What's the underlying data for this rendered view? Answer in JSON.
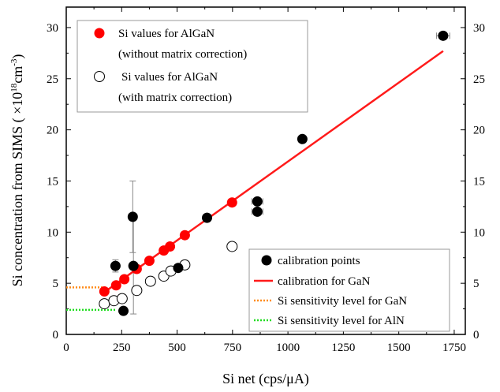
{
  "chart_data": {
    "type": "scatter",
    "xlabel": "Si net (cps/μA)",
    "ylabel_main": "Si concentration from SIMS ( ×10",
    "ylabel_exp": "18",
    "ylabel_unit": "cm",
    "ylabel_unit_exp": "-3",
    "ylabel_close": ")",
    "xlim": [
      0,
      1800
    ],
    "ylim": [
      0,
      32
    ],
    "xticks": [
      0,
      250,
      500,
      750,
      1000,
      1250,
      1500,
      1750
    ],
    "yticks": [
      0,
      5,
      10,
      15,
      20,
      25,
      30
    ],
    "legend_top": {
      "position": "top-left",
      "entries": [
        {
          "line1": "Si values for AlGaN",
          "line2": "(without matrix correction)"
        },
        {
          "line1": "Si values for AlGaN",
          "line2": "(with matrix correction)"
        }
      ]
    },
    "legend_bottom": {
      "position": "bottom-right",
      "entries": [
        "calibration points",
        "calibration for GaN",
        "Si sensitivity level for GaN",
        "Si sensitivity level for AlN"
      ]
    },
    "series": [
      {
        "name": "calibration points",
        "style": "filled-black",
        "points": [
          {
            "x": 222,
            "y": 6.7,
            "yerr": 0.6
          },
          {
            "x": 258,
            "y": 2.3
          },
          {
            "x": 300,
            "y": 11.5,
            "yerr": 3.5
          },
          {
            "x": 303,
            "y": 6.7,
            "yerr": 4.7
          },
          {
            "x": 505,
            "y": 6.5
          },
          {
            "x": 635,
            "y": 11.4
          },
          {
            "x": 862,
            "y": 13.0,
            "xerr": 25
          },
          {
            "x": 862,
            "y": 12.0,
            "xerr": 25
          },
          {
            "x": 1065,
            "y": 19.1
          },
          {
            "x": 1700,
            "y": 29.2,
            "xerr": 30
          }
        ]
      },
      {
        "name": "Si values for AlGaN (without matrix correction)",
        "style": "filled-red",
        "points": [
          {
            "x": 172,
            "y": 4.2
          },
          {
            "x": 225,
            "y": 4.8
          },
          {
            "x": 262,
            "y": 5.4
          },
          {
            "x": 318,
            "y": 6.4
          },
          {
            "x": 375,
            "y": 7.2
          },
          {
            "x": 440,
            "y": 8.2
          },
          {
            "x": 468,
            "y": 8.6
          },
          {
            "x": 535,
            "y": 9.7
          },
          {
            "x": 748,
            "y": 12.9
          }
        ]
      },
      {
        "name": "Si values for AlGaN (with matrix correction)",
        "style": "open",
        "points": [
          {
            "x": 172,
            "y": 3.0
          },
          {
            "x": 215,
            "y": 3.3
          },
          {
            "x": 252,
            "y": 3.5
          },
          {
            "x": 318,
            "y": 4.3
          },
          {
            "x": 380,
            "y": 5.2
          },
          {
            "x": 440,
            "y": 5.7
          },
          {
            "x": 472,
            "y": 6.2
          },
          {
            "x": 535,
            "y": 6.8
          },
          {
            "x": 748,
            "y": 8.6
          }
        ]
      }
    ],
    "calibration_line": {
      "name": "calibration for GaN",
      "from": [
        170,
        4.1
      ],
      "to": [
        1700,
        27.7
      ]
    },
    "sensitivity_gan": {
      "name": "Si sensitivity level for GaN",
      "y": 4.6,
      "x_from": 0,
      "x_to": 172
    },
    "sensitivity_aln": {
      "name": "Si sensitivity level for AlN",
      "y": 2.4,
      "x_from": 0,
      "x_to": 225
    },
    "colors": {
      "calibration_points": "#000000",
      "algan_uncorrected": "#ff0000",
      "calibration_line": "#ff1a1a",
      "sensitivity_gan": "#ff8c1a",
      "sensitivity_aln": "#22dd22",
      "errorbar": "#888888"
    }
  }
}
